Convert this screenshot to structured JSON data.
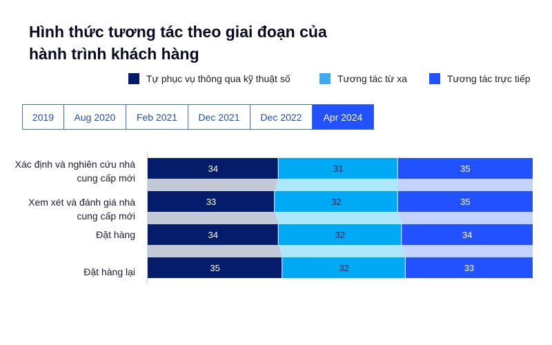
{
  "header": {
    "title_line1": "Hình thức tương tác theo giai đoạn của",
    "title_line2": "hành trình khách hàng"
  },
  "legend": [
    {
      "label": "Tự phục vụ thông qua kỹ thuật số",
      "color": "#051c6b"
    },
    {
      "label": "Tương tác từ xa",
      "color": "#3fa9f5"
    },
    {
      "label": "Tương tác trực tiếp",
      "color": "#2251ff"
    }
  ],
  "tabs": [
    {
      "label": "2019",
      "active": false
    },
    {
      "label": "Aug 2020",
      "active": false
    },
    {
      "label": "Feb 2021",
      "active": false
    },
    {
      "label": "Dec 2021",
      "active": false
    },
    {
      "label": "Dec 2022",
      "active": false
    },
    {
      "label": "Apr 2024",
      "active": true
    }
  ],
  "colors": {
    "digital": "#051c6b",
    "remote": "#00a9f4",
    "inperson": "#2251ff",
    "digital_band": "#c3cad6",
    "remote_band": "#ade7fc",
    "inperson_band": "#c4d3fb"
  },
  "chart_data": {
    "type": "bar",
    "orientation": "horizontal",
    "stacked": true,
    "normalized_to": 100,
    "categories": [
      "Xác định và nghiên cứu nhà cung cấp mới",
      "Xem xét và đánh giá nhà cung cấp mới",
      "Đặt hàng",
      "Đặt hàng lại"
    ],
    "category_lines": [
      [
        "Xác định và nghiên cứu nhà",
        "cung cấp mới"
      ],
      [
        "Xem xét và đánh giá nhà",
        "cung cấp mới"
      ],
      [
        "Đặt hàng"
      ],
      [
        "Đặt hàng lại"
      ]
    ],
    "series": [
      {
        "name": "Tự phục vụ thông qua kỹ thuật số",
        "values": [
          34,
          33,
          34,
          35
        ]
      },
      {
        "name": "Tương tác từ xa",
        "values": [
          31,
          32,
          32,
          32
        ]
      },
      {
        "name": "Tương tác trực tiếp",
        "values": [
          35,
          35,
          34,
          33
        ]
      }
    ],
    "selected_period": "Apr 2024"
  }
}
